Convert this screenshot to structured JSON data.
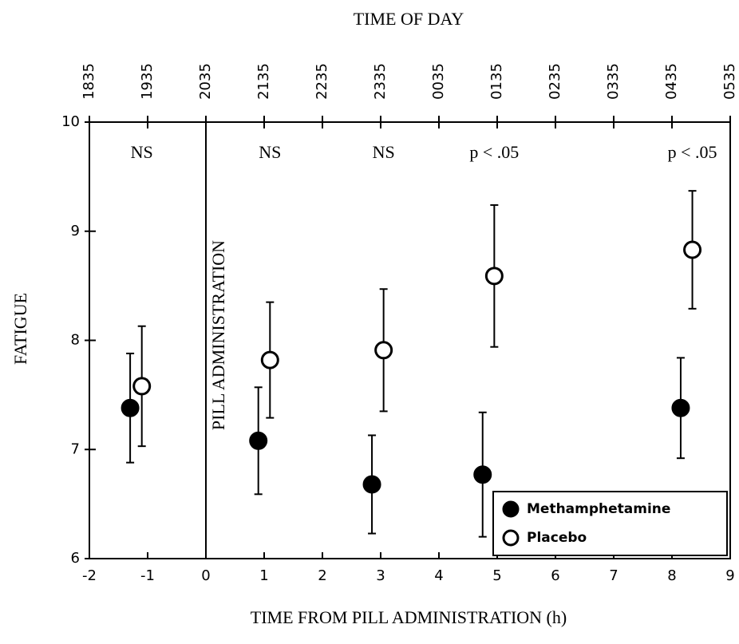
{
  "chart_data": {
    "type": "scatter",
    "title": "TIME OF DAY",
    "xlabel": "TIME FROM PILL ADMINISTRATION (h)",
    "ylabel": "FATIGUE",
    "xlim": [
      -2,
      9
    ],
    "ylim": [
      6,
      10
    ],
    "xticks": [
      -2,
      -1,
      0,
      1,
      2,
      3,
      4,
      5,
      6,
      7,
      8,
      9
    ],
    "yticks": [
      6,
      7,
      8,
      9,
      10
    ],
    "x2ticks": [
      {
        "value": -2,
        "label": "1835"
      },
      {
        "value": -1,
        "label": "1935"
      },
      {
        "value": 0,
        "label": "2035"
      },
      {
        "value": 1,
        "label": "2135"
      },
      {
        "value": 2,
        "label": "2235"
      },
      {
        "value": 3,
        "label": "2335"
      },
      {
        "value": 4,
        "label": "0035"
      },
      {
        "value": 5,
        "label": "0135"
      },
      {
        "value": 6,
        "label": "0235"
      },
      {
        "value": 7,
        "label": "0335"
      },
      {
        "value": 8,
        "label": "0435"
      },
      {
        "value": 9,
        "label": "0535"
      }
    ],
    "vline": {
      "x": 0,
      "label": "PILL ADMINISTRATION"
    },
    "annotations": [
      "NS",
      "NS",
      "NS",
      "p < .05",
      "p < .05"
    ],
    "legend": "lower right",
    "series": [
      {
        "name": "Methamphetamine",
        "color": "#000000",
        "filled": true,
        "x": [
          -1.3,
          0.9,
          2.85,
          4.75,
          8.15
        ],
        "values": [
          7.38,
          7.08,
          6.68,
          6.77,
          7.38
        ],
        "errors": [
          0.5,
          0.49,
          0.45,
          0.57,
          0.46
        ]
      },
      {
        "name": "Placebo",
        "color": "#000000",
        "filled": false,
        "x": [
          -1.1,
          1.1,
          3.05,
          4.95,
          8.35
        ],
        "values": [
          7.58,
          7.82,
          7.91,
          8.59,
          8.83
        ],
        "errors": [
          0.55,
          0.53,
          0.56,
          0.65,
          0.54
        ]
      }
    ]
  }
}
